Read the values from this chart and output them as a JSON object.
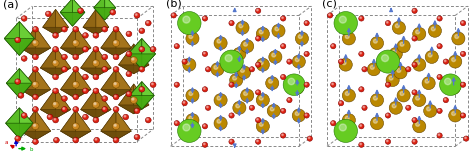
{
  "fig_width": 4.74,
  "fig_height": 1.54,
  "dpi": 100,
  "bg_color": "#ffffff",
  "colors": {
    "red": "#dd2211",
    "green": "#55bb22",
    "brown": "#996611",
    "brown_dark": "#7a5000",
    "green_dark": "#337700",
    "blue_arrow": "#5577cc",
    "box": "#888888"
  },
  "panel_a_label": "(a)",
  "panel_b_label": "(b)",
  "panel_c_label": "(c)"
}
